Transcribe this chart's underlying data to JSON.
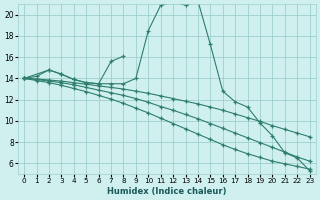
{
  "xlabel": "Humidex (Indice chaleur)",
  "bg_color": "#cff0ee",
  "grid_color": "#9ecece",
  "line_color": "#2e7d6e",
  "xlim": [
    -0.5,
    23.5
  ],
  "ylim": [
    5.0,
    21.0
  ],
  "xticks": [
    0,
    1,
    2,
    3,
    4,
    5,
    6,
    7,
    8,
    9,
    10,
    11,
    12,
    13,
    14,
    15,
    16,
    17,
    18,
    19,
    20,
    21,
    22,
    23
  ],
  "yticks": [
    6,
    8,
    10,
    12,
    14,
    16,
    18,
    20
  ],
  "series": [
    {
      "x": [
        0,
        1,
        2,
        3,
        4,
        5,
        6,
        7,
        8,
        9,
        10,
        11,
        12,
        13,
        14,
        15,
        16,
        17,
        18,
        19,
        20,
        21,
        22,
        23
      ],
      "y": [
        14.0,
        14.2,
        14.8,
        14.4,
        13.9,
        13.6,
        13.5,
        13.5,
        13.5,
        14.0,
        18.5,
        20.9,
        21.2,
        20.9,
        21.3,
        17.2,
        12.8,
        11.8,
        11.3,
        9.8,
        8.6,
        7.0,
        6.5,
        5.3
      ]
    },
    {
      "x": [
        0,
        2,
        3,
        4,
        5,
        6,
        7,
        8
      ],
      "y": [
        14.0,
        14.8,
        14.4,
        13.9,
        13.6,
        13.5,
        15.6,
        16.1
      ]
    },
    {
      "x": [
        0,
        1,
        2,
        3,
        4,
        5,
        6,
        7,
        8,
        9,
        10,
        11,
        12,
        13,
        14,
        15,
        16,
        17,
        18,
        19,
        20,
        21,
        22,
        23
      ],
      "y": [
        14.0,
        13.95,
        13.85,
        13.75,
        13.6,
        13.45,
        13.3,
        13.15,
        13.0,
        12.8,
        12.6,
        12.35,
        12.1,
        11.85,
        11.6,
        11.3,
        11.0,
        10.65,
        10.3,
        9.95,
        9.55,
        9.2,
        8.85,
        8.5
      ]
    },
    {
      "x": [
        0,
        1,
        2,
        3,
        4,
        5,
        6,
        7,
        8,
        9,
        10,
        11,
        12,
        13,
        14,
        15,
        16,
        17,
        18,
        19,
        20,
        21,
        22,
        23
      ],
      "y": [
        14.0,
        13.9,
        13.75,
        13.6,
        13.4,
        13.15,
        12.9,
        12.65,
        12.4,
        12.1,
        11.75,
        11.35,
        11.0,
        10.6,
        10.2,
        9.75,
        9.3,
        8.85,
        8.4,
        7.95,
        7.5,
        7.05,
        6.6,
        6.2
      ]
    },
    {
      "x": [
        0,
        1,
        2,
        3,
        4,
        5,
        6,
        7,
        8,
        9,
        10,
        11,
        12,
        13,
        14,
        15,
        16,
        17,
        18,
        19,
        20,
        21,
        22,
        23
      ],
      "y": [
        14.0,
        13.8,
        13.6,
        13.35,
        13.05,
        12.75,
        12.4,
        12.05,
        11.65,
        11.2,
        10.75,
        10.25,
        9.75,
        9.25,
        8.75,
        8.25,
        7.75,
        7.3,
        6.9,
        6.55,
        6.2,
        5.95,
        5.7,
        5.45
      ]
    }
  ]
}
